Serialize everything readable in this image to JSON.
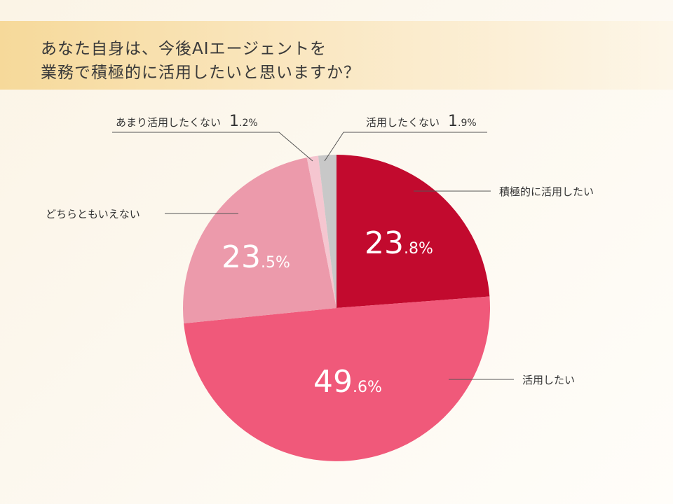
{
  "title": {
    "line1": "あなた自身は、今後AIエージェントを",
    "line2": "業務で積極的に活用したいと思いますか？"
  },
  "chart_data": {
    "type": "pie",
    "start": "12 o'clock, clockwise",
    "slices": [
      {
        "label": "積極的に活用したい",
        "value": 23.8,
        "int": "23",
        "dec": ".8",
        "color": "#c20a2e",
        "label_position": "outside-right"
      },
      {
        "label": "活用したい",
        "value": 49.6,
        "int": "49",
        "dec": ".6",
        "color": "#f0597a",
        "label_position": "outside-right"
      },
      {
        "label": "どちらともいえない",
        "value": 23.5,
        "int": "23",
        "dec": ".5",
        "color": "#ec9aab",
        "label_position": "outside-left"
      },
      {
        "label": "あまり活用したくない",
        "value": 1.2,
        "int": "1",
        "dec": ".2",
        "color": "#f5c6d0",
        "label_position": "outside-top-left"
      },
      {
        "label": "活用したくない",
        "value": 1.9,
        "int": "1",
        "dec": ".9",
        "color": "#c8c8c8",
        "label_position": "outside-top-right"
      }
    ],
    "value_suffix": "%"
  }
}
